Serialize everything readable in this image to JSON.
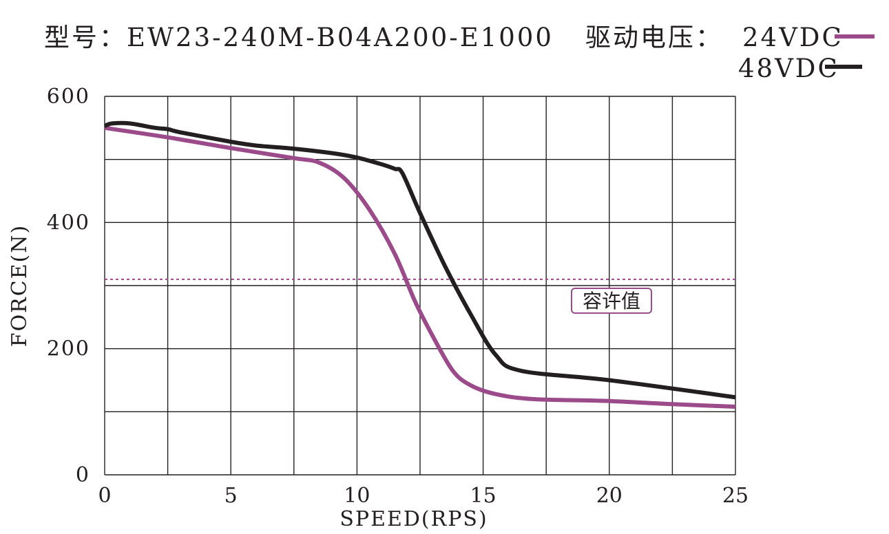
{
  "header": {
    "model_text": "型号：EW23-240M-B04A200-E1000",
    "drive_voltage_label": "驱动电压：",
    "legend": [
      {
        "label": "24VDC",
        "color": "#9b4a8a"
      },
      {
        "label": "48VDC",
        "color": "#231f20"
      }
    ]
  },
  "chart_data": {
    "type": "line",
    "title": "型号：EW23-240M-B04A200-E1000",
    "xlabel": "SPEED(RPS)",
    "ylabel": "FORCE(N)",
    "xlim": [
      0,
      25
    ],
    "ylim": [
      0,
      600
    ],
    "x_ticks": [
      0,
      5,
      10,
      15,
      20,
      25
    ],
    "y_ticks": [
      0,
      200,
      400,
      600
    ],
    "x_grid": [
      0,
      2.5,
      5,
      7.5,
      10,
      12.5,
      15,
      17.5,
      20,
      22.5,
      25
    ],
    "y_grid": [
      0,
      100,
      200,
      300,
      400,
      500,
      600
    ],
    "grid": true,
    "legend_position": "top-right",
    "series": [
      {
        "name": "24VDC",
        "color": "#9b4a8a",
        "x": [
          0,
          2.5,
          5,
          7.5,
          8.5,
          9.5,
          10.5,
          11.5,
          12.3,
          13,
          13.8,
          14.5,
          15.5,
          17,
          20,
          22.5,
          25
        ],
        "y": [
          550,
          535,
          518,
          502,
          495,
          470,
          420,
          350,
          275,
          220,
          165,
          142,
          128,
          120,
          117,
          112,
          108
        ]
      },
      {
        "name": "48VDC",
        "color": "#231f20",
        "x": [
          0,
          0.3,
          1,
          2,
          2.5,
          3,
          5,
          6,
          7.5,
          9,
          10,
          11,
          11.5,
          11.8,
          12.5,
          13.5,
          14.5,
          15.5,
          16.5,
          20,
          25
        ],
        "y": [
          553,
          557,
          557,
          550,
          548,
          543,
          528,
          522,
          517,
          510,
          503,
          492,
          485,
          478,
          415,
          330,
          255,
          190,
          165,
          150,
          123
        ]
      }
    ],
    "reference_lines": [
      {
        "y": 310,
        "label": "容许值",
        "color": "#9b4a8a",
        "style": "dashed"
      }
    ]
  }
}
